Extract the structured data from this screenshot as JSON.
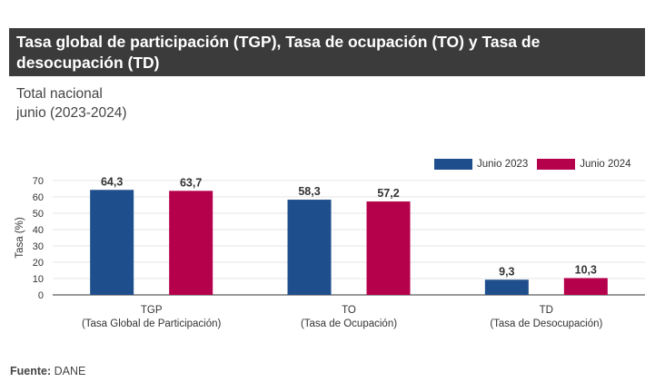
{
  "header": {
    "title": "Tasa global de participación (TGP), Tasa de ocupación (TO) y Tasa de desocupación (TD)",
    "subtitle_line1": "Total nacional",
    "subtitle_line2": "junio (2023-2024)"
  },
  "source": {
    "label": "Fuente:",
    "value": "DANE"
  },
  "colors": {
    "series_2023": "#1f4e8c",
    "series_2024": "#b5004b"
  },
  "chart_data": {
    "type": "bar",
    "categories": [
      [
        "TGP",
        "(Tasa Global de Participación)"
      ],
      [
        "TO",
        "(Tasa de Ocupación)"
      ],
      [
        "TD",
        "(Tasa de Desocupación)"
      ]
    ],
    "series": [
      {
        "name": "Junio 2023",
        "values": [
          64.3,
          58.3,
          9.3
        ],
        "labels": [
          "64,3",
          "58,3",
          "9,3"
        ]
      },
      {
        "name": "Junio 2024",
        "values": [
          63.7,
          57.2,
          10.3
        ],
        "labels": [
          "63,7",
          "57,2",
          "10,3"
        ]
      }
    ],
    "ylabel": "Tasa (%)",
    "ylim": [
      0,
      70
    ],
    "yticks": [
      0,
      10,
      20,
      30,
      40,
      50,
      60,
      70
    ],
    "grid": true,
    "legend": "top-right"
  }
}
